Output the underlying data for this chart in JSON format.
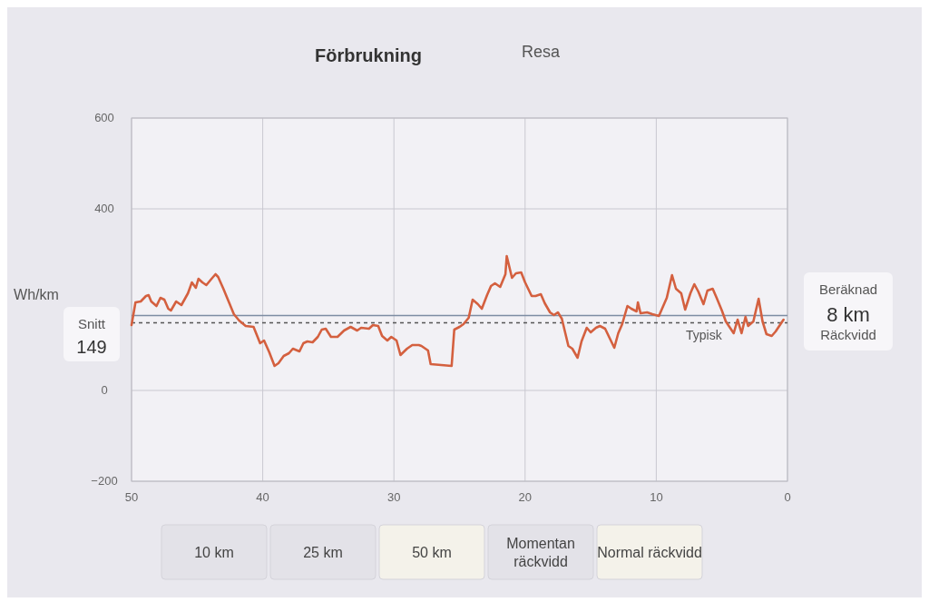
{
  "chart_data": {
    "type": "line",
    "title": "Förbrukning",
    "ylabel": "Wh/km",
    "xlim": [
      50,
      0
    ],
    "xticks": [
      50,
      40,
      30,
      20,
      10,
      0
    ],
    "ylim": [
      -200,
      600
    ],
    "yticks": [
      -200,
      0,
      400,
      600
    ],
    "grid": true,
    "marker": "none",
    "line_style": "solid",
    "x": [
      50,
      49.7,
      49.3,
      48.9,
      48.7,
      48.5,
      48.1,
      47.8,
      47.5,
      47.2,
      47.0,
      46.6,
      46.2,
      45.7,
      45.4,
      45.1,
      44.9,
      44.6,
      44.3,
      43.9,
      43.6,
      43.4,
      43.0,
      42.6,
      42.2,
      41.8,
      41.3,
      40.7,
      40.2,
      39.9,
      39.5,
      39.1,
      38.8,
      38.4,
      38.0,
      37.7,
      37.2,
      36.9,
      36.6,
      36.2,
      35.8,
      35.5,
      35.2,
      34.8,
      34.3,
      33.8,
      33.3,
      32.8,
      32.5,
      31.9,
      31.6,
      31.2,
      30.9,
      30.5,
      30.2,
      29.8,
      29.5,
      29.0,
      28.6,
      28.1,
      27.9,
      27.4,
      27.2,
      25.6,
      25.4,
      25.0,
      24.7,
      24.3,
      24.0,
      23.6,
      23.3,
      22.9,
      22.6,
      22.3,
      21.9,
      21.5,
      21.4,
      21.0,
      20.7,
      20.3,
      20.0,
      19.5,
      19.2,
      18.8,
      18.5,
      18.1,
      17.8,
      17.5,
      17.2,
      16.7,
      16.4,
      16.0,
      15.7,
      15.3,
      15.0,
      14.6,
      14.3,
      13.9,
      13.2,
      12.9,
      12.6,
      12.2,
      11.9,
      11.5,
      11.4,
      11.2,
      10.7,
      10.3,
      9.8,
      9.5,
      9.2,
      8.8,
      8.5,
      8.1,
      7.8,
      7.4,
      7.1,
      6.8,
      6.4,
      6.1,
      5.7,
      5.4,
      5.0,
      4.7,
      4.1,
      3.8,
      3.5,
      3.2,
      3.0,
      2.6,
      2.2,
      1.9,
      1.6,
      1.2,
      0.9,
      0.3
    ],
    "series": [
      {
        "color": "#d4603f",
        "values": [
          144,
          194,
          196,
          208,
          210,
          196,
          186,
          204,
          200,
          180,
          176,
          196,
          188,
          214,
          238,
          226,
          246,
          238,
          232,
          246,
          256,
          250,
          224,
          196,
          168,
          154,
          142,
          140,
          104,
          110,
          84,
          54,
          60,
          76,
          82,
          92,
          86,
          104,
          108,
          106,
          118,
          134,
          136,
          118,
          118,
          132,
          140,
          132,
          138,
          136,
          144,
          142,
          120,
          110,
          118,
          110,
          78,
          92,
          100,
          100,
          98,
          88,
          58,
          54,
          134,
          140,
          146,
          160,
          200,
          190,
          180,
          210,
          230,
          236,
          228,
          256,
          296,
          248,
          258,
          260,
          238,
          208,
          208,
          212,
          192,
          172,
          166,
          172,
          158,
          98,
          92,
          72,
          108,
          138,
          128,
          138,
          142,
          136,
          94,
          126,
          146,
          186,
          180,
          174,
          194,
          170,
          172,
          168,
          164,
          184,
          204,
          254,
          224,
          214,
          178,
          214,
          234,
          218,
          190,
          220,
          224,
          204,
          176,
          152,
          126,
          156,
          126,
          162,
          142,
          152,
          202,
          152,
          124,
          120,
          130,
          156
        ]
      }
    ],
    "ref_lines": [
      {
        "axis": "y",
        "value": 149,
        "label": "Typisk",
        "line_style": "dashed",
        "color": "#555555"
      },
      {
        "axis": "y",
        "value": 165,
        "color": "#7d8da3",
        "line_style": "solid"
      }
    ],
    "annotations": [
      "Resa",
      "Snitt",
      "149",
      "Beräknad",
      "8 km",
      "Räckvidd",
      "10 km",
      "25 km",
      "50 km",
      "Momentan räckvidd",
      "Normal räckvidd"
    ]
  }
}
